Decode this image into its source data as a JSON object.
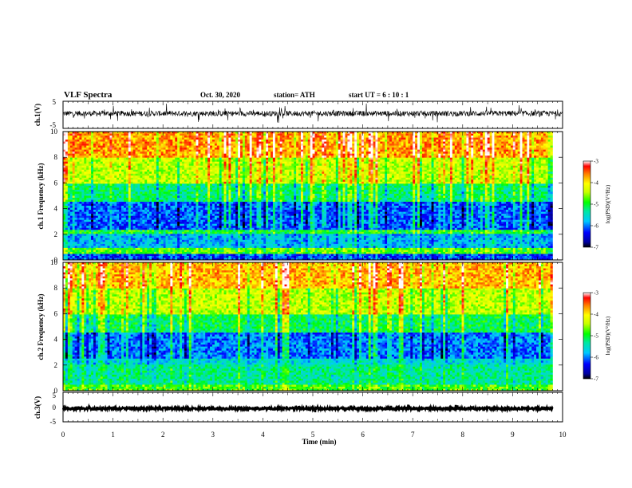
{
  "header": {
    "title": "VLF Spectra",
    "date": "Oct. 30, 2020",
    "station": "station= ATH",
    "start": "start  UT  =   6  : 10 : 1"
  },
  "colorbar": {
    "label": "log(PSD)(V²/Hz)",
    "min": -7,
    "max": -3,
    "ticks": [
      "-3",
      "-4",
      "-5",
      "-6",
      "-7"
    ]
  },
  "chart_data": [
    {
      "type": "line",
      "name": "ch1-waveform",
      "ylabel": "ch.1(V)",
      "ylim": [
        -5,
        5
      ],
      "yticks": [
        "5",
        "-5"
      ],
      "xlim": [
        0,
        10
      ],
      "typical_value": 0.5,
      "noise_amplitude": 1.0
    },
    {
      "type": "heatmap",
      "name": "ch1-spectrogram",
      "ylabel": "ch.1 Frequency (kHz)",
      "ylim": [
        0,
        10
      ],
      "yticks": [
        "0",
        "2",
        "4",
        "6",
        "8",
        "10"
      ],
      "xlim": [
        0,
        9.8
      ],
      "frequency_bands_kHz": [
        {
          "from": 0,
          "to": 0.5,
          "log_psd": -6.2
        },
        {
          "from": 0.5,
          "to": 0.9,
          "log_psd": -4.8
        },
        {
          "from": 0.9,
          "to": 2.0,
          "log_psd": -5.8
        },
        {
          "from": 2.0,
          "to": 2.4,
          "log_psd": -5.0
        },
        {
          "from": 2.4,
          "to": 4.5,
          "log_psd": -6.1
        },
        {
          "from": 4.5,
          "to": 6.0,
          "log_psd": -5.2
        },
        {
          "from": 6.0,
          "to": 8.0,
          "log_psd": -4.4
        },
        {
          "from": 8.0,
          "to": 10.0,
          "log_psd": -3.7
        }
      ]
    },
    {
      "type": "heatmap",
      "name": "ch2-spectrogram",
      "ylabel": "ch.2 Frequency (kHz)",
      "ylim": [
        0,
        10
      ],
      "yticks": [
        "0",
        "2",
        "4",
        "6",
        "8",
        "10"
      ],
      "xlim": [
        0,
        9.8
      ],
      "frequency_bands_kHz": [
        {
          "from": 0,
          "to": 0.4,
          "log_psd": -4.8
        },
        {
          "from": 0.4,
          "to": 2.0,
          "log_psd": -5.3
        },
        {
          "from": 2.0,
          "to": 2.5,
          "log_psd": -5.6
        },
        {
          "from": 2.5,
          "to": 4.5,
          "log_psd": -6.0
        },
        {
          "from": 4.5,
          "to": 6.0,
          "log_psd": -5.1
        },
        {
          "from": 6.0,
          "to": 8.0,
          "log_psd": -4.4
        },
        {
          "from": 8.0,
          "to": 10.0,
          "log_psd": -3.8
        }
      ]
    },
    {
      "type": "line",
      "name": "ch3-waveform",
      "ylabel": "ch.3(V)",
      "ylim": [
        -5,
        5
      ],
      "yticks": [
        "5",
        "0",
        "-5"
      ],
      "xlim": [
        0,
        9.8
      ],
      "typical_value": -0.5,
      "noise_amplitude": 0.35
    }
  ],
  "x_axis": {
    "xlabel": "Time  (min)",
    "xlim": [
      0,
      10
    ],
    "ticks": [
      "0",
      "1",
      "2",
      "3",
      "4",
      "5",
      "6",
      "7",
      "8",
      "9",
      "10"
    ]
  }
}
